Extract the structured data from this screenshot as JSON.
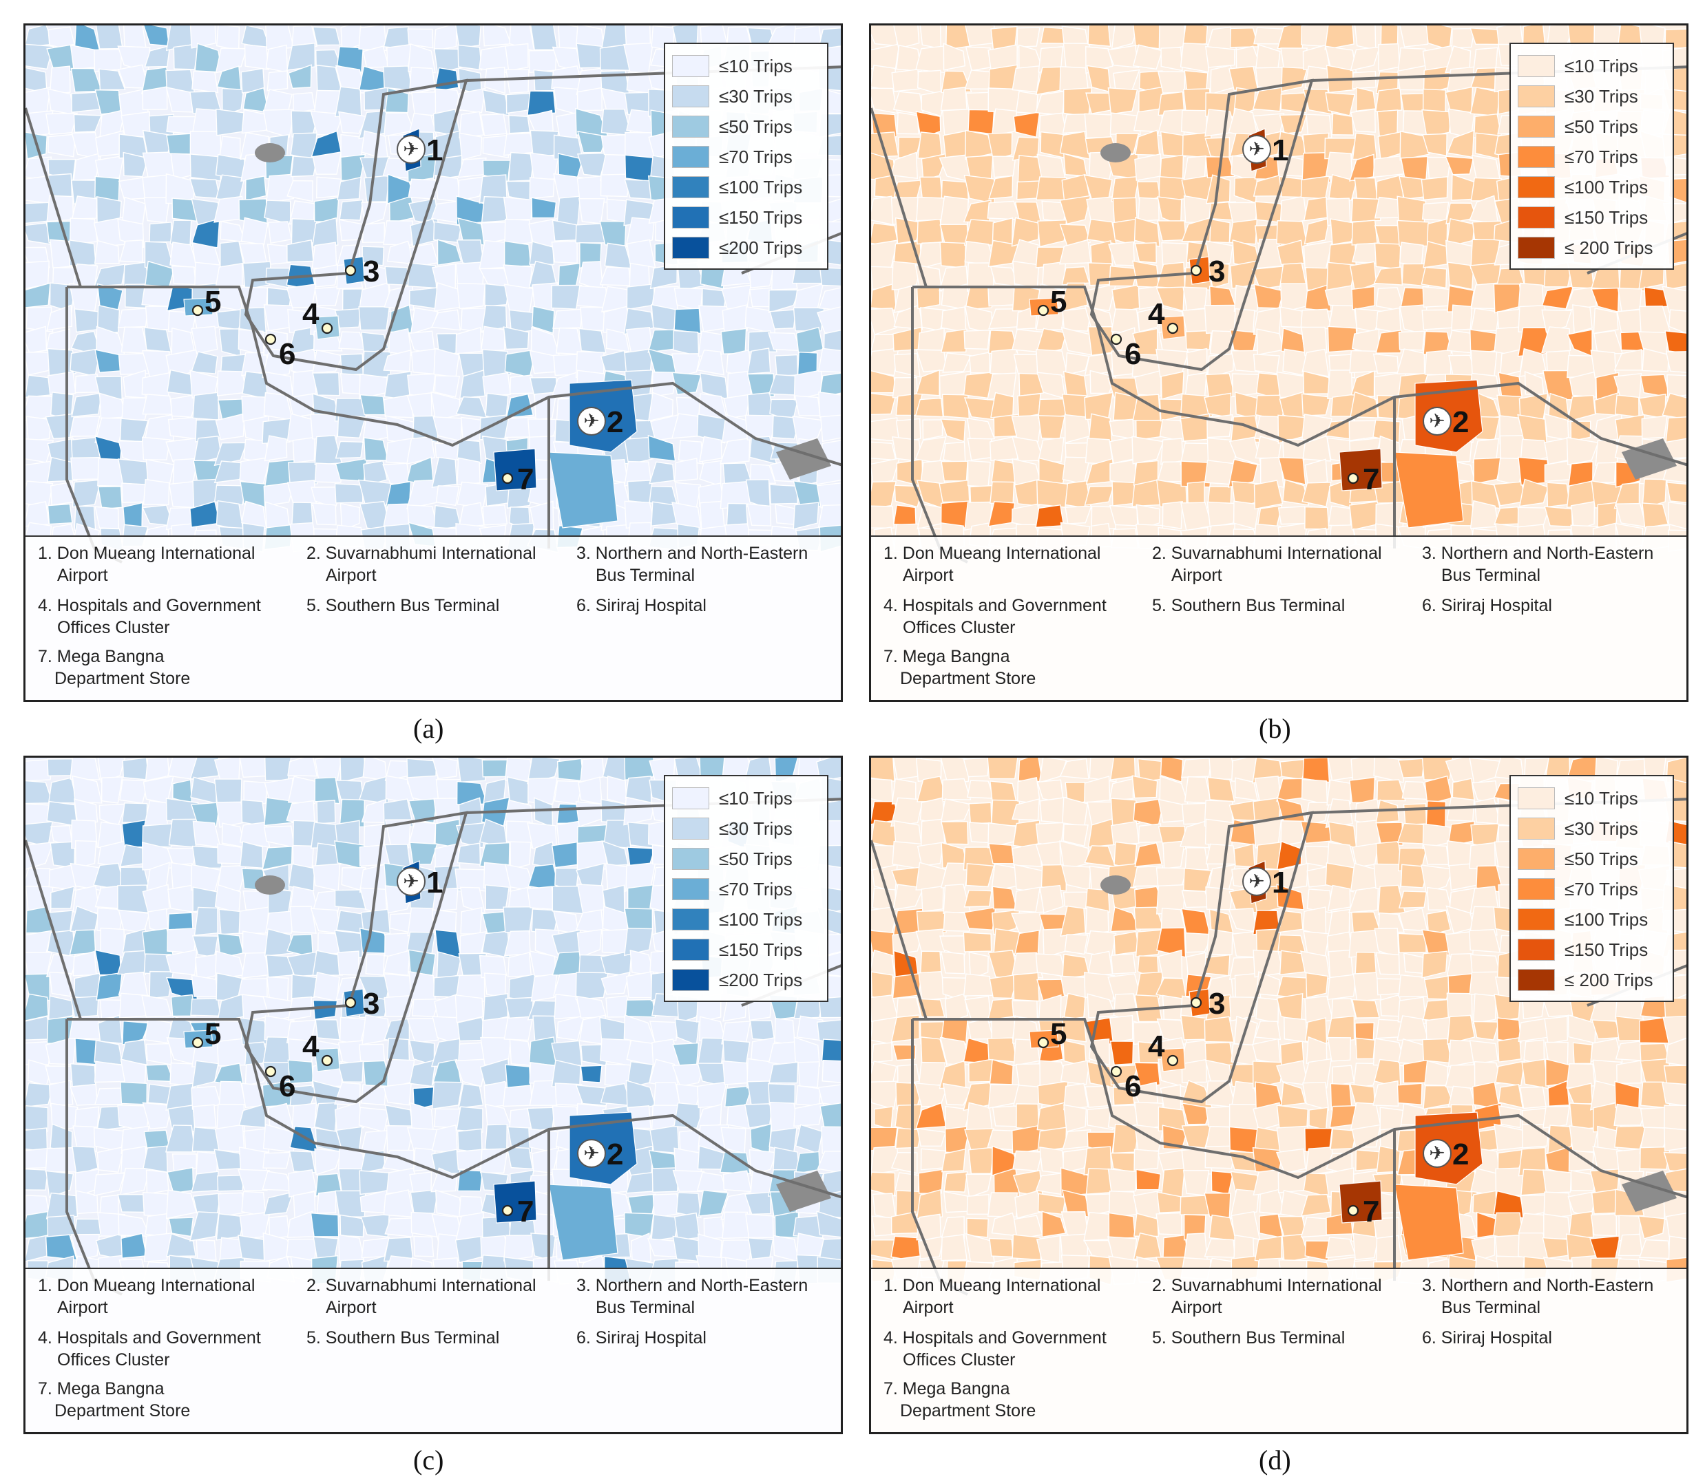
{
  "panels": [
    {
      "label": "(a)",
      "theme": "blue",
      "legend": [
        "≤10 Trips",
        "≤30 Trips",
        "≤50 Trips",
        "≤70 Trips",
        "≤100 Trips",
        "≤150 Trips",
        "≤200 Trips"
      ],
      "legend_colors": [
        "#eff3ff",
        "#c6dbef",
        "#9ecae1",
        "#6baed6",
        "#3182bd",
        "#2171b5",
        "#08519c"
      ]
    },
    {
      "label": "(b)",
      "theme": "orange",
      "legend": [
        "≤10 Trips",
        "≤30 Trips",
        "≤50 Trips",
        "≤70 Trips",
        "≤100 Trips",
        "≤150 Trips",
        "≤ 200 Trips"
      ],
      "legend_colors": [
        "#fdeee0",
        "#fdd0a2",
        "#fdae6b",
        "#fd8d3c",
        "#f16913",
        "#e6550d",
        "#a63603"
      ]
    },
    {
      "label": "(c)",
      "theme": "blue",
      "legend": [
        "≤10 Trips",
        "≤30 Trips",
        "≤50 Trips",
        "≤70 Trips",
        "≤100 Trips",
        "≤150 Trips",
        "≤200 Trips"
      ],
      "legend_colors": [
        "#eff3ff",
        "#c6dbef",
        "#9ecae1",
        "#6baed6",
        "#3182bd",
        "#2171b5",
        "#08519c"
      ]
    },
    {
      "label": "(d)",
      "theme": "orange",
      "legend": [
        "≤10 Trips",
        "≤30 Trips",
        "≤50 Trips",
        "≤70 Trips",
        "≤100 Trips",
        "≤150 Trips",
        "≤ 200 Trips"
      ],
      "legend_colors": [
        "#fdeee0",
        "#fdd0a2",
        "#fdae6b",
        "#fd8d3c",
        "#f16913",
        "#e6550d",
        "#a63603"
      ]
    }
  ],
  "locations": [
    {
      "num": "1",
      "line1": "1. Don Mueang International",
      "line2": "Airport"
    },
    {
      "num": "2",
      "line1": "2. Suvarnabhumi International",
      "line2": "Airport"
    },
    {
      "num": "3",
      "line1": "3. Northern and North-Eastern",
      "line2": "Bus Terminal"
    },
    {
      "num": "4",
      "line1": "4. Hospitals and Government",
      "line2": "Offices Cluster"
    },
    {
      "num": "5",
      "line1": "5. Southern Bus Terminal",
      "line2": ""
    },
    {
      "num": "6",
      "line1": "6. Siriraj Hospital",
      "line2": ""
    },
    {
      "num": "7",
      "line1": "7. Mega Bangna",
      "line2": "Department Store"
    }
  ],
  "colors": {
    "blue_base": "#eef1fb",
    "orange_base": "#fdf0e4",
    "boundary": "#6e6e6e",
    "water": "#8c8c8c"
  },
  "icons": {
    "airport": "airplane-icon"
  }
}
